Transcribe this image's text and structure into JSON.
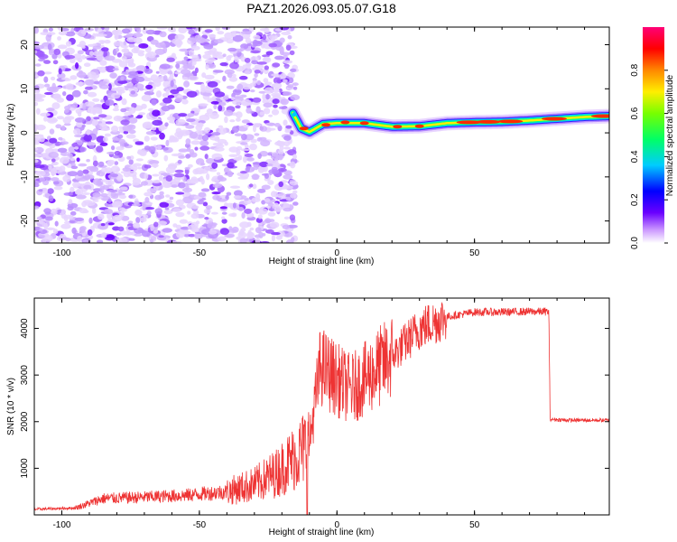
{
  "title": "PAZ1.2026.093.05.07.G18",
  "chart_data": [
    {
      "type": "heatmap",
      "xlabel": "Height of straight line (km)",
      "ylabel": "Frequency (Hz)",
      "xlim": [
        -110,
        99
      ],
      "ylim": [
        -25,
        24
      ],
      "xticks": [
        -100,
        -50,
        0,
        50
      ],
      "yticks": [
        -20,
        -10,
        0,
        10,
        20
      ],
      "noise_region_x": [
        -110,
        -17
      ],
      "signal_track": [
        {
          "x": -16,
          "f": 4.5
        },
        {
          "x": -13,
          "f": 1.0
        },
        {
          "x": -10,
          "f": 0.2
        },
        {
          "x": -5,
          "f": 2.0
        },
        {
          "x": 0,
          "f": 2.2
        },
        {
          "x": 10,
          "f": 2.2
        },
        {
          "x": 20,
          "f": 1.4
        },
        {
          "x": 30,
          "f": 1.5
        },
        {
          "x": 40,
          "f": 2.2
        },
        {
          "x": 50,
          "f": 2.4
        },
        {
          "x": 60,
          "f": 2.5
        },
        {
          "x": 70,
          "f": 2.8
        },
        {
          "x": 80,
          "f": 3.2
        },
        {
          "x": 90,
          "f": 3.6
        },
        {
          "x": 99,
          "f": 3.8
        }
      ],
      "colorbar": {
        "label": "Normalized spectral amplitude",
        "range": [
          0,
          1
        ],
        "ticks": [
          "0.0",
          "0.2",
          "0.4",
          "0.6",
          "0.8"
        ]
      }
    },
    {
      "type": "line",
      "color": "#ee3333",
      "xlabel": "Height of straight line (km)",
      "ylabel": "SNR (10 * v/v)",
      "xlim": [
        -110,
        99
      ],
      "ylim": [
        0,
        4650
      ],
      "xticks": [
        -100,
        -50,
        0,
        50
      ],
      "yticks": [
        1000,
        2000,
        3000,
        4000
      ],
      "trend": [
        {
          "x": -110,
          "y": 120
        },
        {
          "x": -95,
          "y": 150
        },
        {
          "x": -85,
          "y": 350
        },
        {
          "x": -70,
          "y": 380
        },
        {
          "x": -55,
          "y": 420
        },
        {
          "x": -40,
          "y": 500
        },
        {
          "x": -30,
          "y": 650
        },
        {
          "x": -22,
          "y": 900
        },
        {
          "x": -15,
          "y": 1250
        },
        {
          "x": -10,
          "y": 1550
        },
        {
          "x": -6,
          "y": 3200
        },
        {
          "x": 0,
          "y": 2900
        },
        {
          "x": 5,
          "y": 2700
        },
        {
          "x": 10,
          "y": 2900
        },
        {
          "x": 15,
          "y": 3150
        },
        {
          "x": 20,
          "y": 3400
        },
        {
          "x": 25,
          "y": 3700
        },
        {
          "x": 30,
          "y": 4000
        },
        {
          "x": 40,
          "y": 4250
        },
        {
          "x": 50,
          "y": 4350
        },
        {
          "x": 60,
          "y": 4350
        },
        {
          "x": 70,
          "y": 4360
        },
        {
          "x": 77,
          "y": 4360
        },
        {
          "x": 77.5,
          "y": 2050
        },
        {
          "x": 85,
          "y": 2030
        },
        {
          "x": 99,
          "y": 2030
        }
      ]
    }
  ]
}
